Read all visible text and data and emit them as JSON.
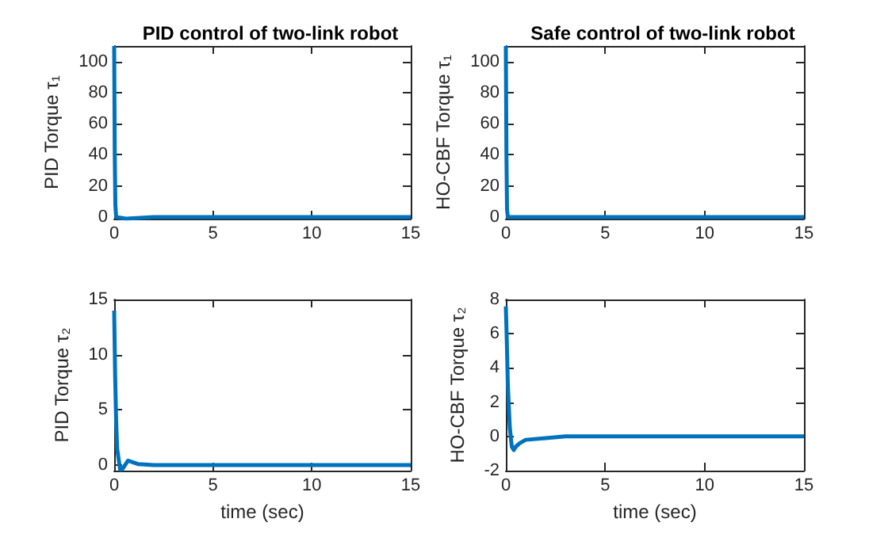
{
  "chart_data": [
    {
      "type": "line",
      "title": "PID control of two-link robot",
      "ylabel": "PID Torque τ₁",
      "x": [
        0,
        0.03,
        0.06,
        0.1,
        0.6,
        2,
        5,
        10,
        15
      ],
      "series": [
        {
          "color": "#0072bd",
          "values": [
            110,
            40,
            8,
            0,
            -1,
            0,
            0,
            0,
            0
          ]
        }
      ],
      "xlim": [
        0,
        15
      ],
      "xticks": [
        0,
        5,
        10,
        15
      ],
      "ylim": [
        -1,
        110
      ],
      "yticks": [
        0,
        20,
        40,
        60,
        80,
        100
      ]
    },
    {
      "type": "line",
      "title": "Safe control of two-link robot",
      "ylabel": "HO-CBF Torque τ₁",
      "x": [
        0,
        0.03,
        0.06,
        0.1,
        2,
        5,
        10,
        15
      ],
      "series": [
        {
          "color": "#0072bd",
          "values": [
            110,
            40,
            5,
            0,
            0,
            0,
            0,
            0
          ]
        }
      ],
      "xlim": [
        0,
        15
      ],
      "xticks": [
        0,
        5,
        10,
        15
      ],
      "ylim": [
        -1,
        110
      ],
      "yticks": [
        0,
        20,
        40,
        60,
        80,
        100
      ]
    },
    {
      "type": "line",
      "ylabel": "PID Torque τ₂",
      "xlabel": "time (sec)",
      "x": [
        0,
        0.05,
        0.1,
        0.15,
        0.3,
        0.4,
        0.7,
        1.2,
        2,
        5,
        10,
        15
      ],
      "series": [
        {
          "color": "#0072bd",
          "values": [
            14,
            8,
            4,
            1.5,
            -0.4,
            -0.4,
            0.4,
            0.1,
            0,
            0,
            0,
            0
          ]
        }
      ],
      "xlim": [
        0,
        15
      ],
      "xticks": [
        0,
        5,
        10,
        15
      ],
      "ylim": [
        -0.5,
        15
      ],
      "yticks": [
        0,
        5,
        10,
        15
      ]
    },
    {
      "type": "line",
      "ylabel": "HO-CBF Torque τ₂",
      "xlabel": "time (sec)",
      "x": [
        0,
        0.05,
        0.1,
        0.2,
        0.3,
        0.4,
        0.5,
        0.7,
        1,
        2,
        3,
        5,
        10,
        15
      ],
      "series": [
        {
          "color": "#0072bd",
          "values": [
            7.6,
            5.5,
            3,
            0.5,
            -0.6,
            -0.8,
            -0.6,
            -0.4,
            -0.2,
            -0.1,
            0,
            0,
            0,
            0
          ]
        }
      ],
      "xlim": [
        0,
        15
      ],
      "xticks": [
        0,
        5,
        10,
        15
      ],
      "ylim": [
        -2,
        8
      ],
      "yticks": [
        -2,
        0,
        2,
        4,
        6,
        8
      ]
    }
  ]
}
